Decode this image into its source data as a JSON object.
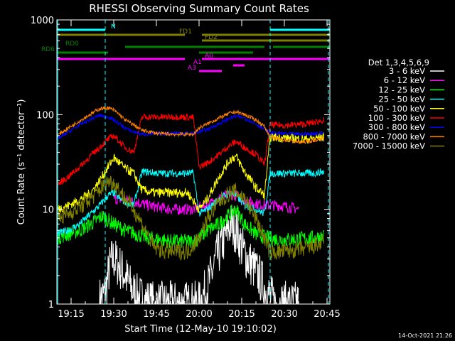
{
  "chart_data": {
    "type": "line",
    "title": "RHESSI Observing Summary Count Rates",
    "xlabel": "Start Time (12-May-10 19:10:02)",
    "ylabel": "Count Rate (s⁻¹ detector⁻¹)",
    "y_scale": "log",
    "ylim": [
      1,
      1000
    ],
    "xlim_minutes": [
      0,
      96
    ],
    "x_ticks": [
      {
        "label": "19:15",
        "minute": 5
      },
      {
        "label": "19:30",
        "minute": 20
      },
      {
        "label": "19:45",
        "minute": 35
      },
      {
        "label": "20:00",
        "minute": 50
      },
      {
        "label": "20:15",
        "minute": 65
      },
      {
        "label": "20:30",
        "minute": 80
      },
      {
        "label": "20:45",
        "minute": 95
      }
    ],
    "y_ticks": [
      {
        "label": "1",
        "value": 1
      },
      {
        "label": "10",
        "value": 10
      },
      {
        "label": "100",
        "value": 100
      },
      {
        "label": "1000",
        "value": 1000
      }
    ],
    "timestamp": "14-Oct-2021 21:26",
    "legend": {
      "placement": "right",
      "header": "Det 1,3,4,5,6,9"
    },
    "series": [
      {
        "name": "3 - 6 keV",
        "color": "#ffffff",
        "points": [
          [
            15,
            1.1
          ],
          [
            17,
            1.3
          ],
          [
            18,
            2
          ],
          [
            19,
            2.8
          ],
          [
            20,
            3
          ],
          [
            22,
            2.5
          ],
          [
            24,
            2
          ],
          [
            26,
            1.5
          ],
          [
            28,
            1.2
          ],
          [
            34,
            1
          ],
          [
            50,
            1
          ],
          [
            53,
            1.5
          ],
          [
            56,
            3
          ],
          [
            59,
            5
          ],
          [
            61,
            7
          ],
          [
            63,
            6
          ],
          [
            65,
            4
          ],
          [
            67,
            3
          ],
          [
            69,
            2.5
          ],
          [
            71,
            2
          ],
          [
            73,
            1.5
          ],
          [
            75,
            1.2
          ],
          [
            77,
            1
          ],
          [
            85,
            1
          ]
        ]
      },
      {
        "name": "6 - 12 keV",
        "color": "#ff00ff",
        "points": [
          [
            20,
            13
          ],
          [
            24,
            12.5
          ],
          [
            28,
            12
          ],
          [
            32,
            11
          ],
          [
            36,
            10.5
          ],
          [
            40,
            10
          ],
          [
            44,
            10
          ],
          [
            48,
            10
          ],
          [
            50,
            10.5
          ],
          [
            53,
            11
          ],
          [
            57,
            13
          ],
          [
            61,
            14.5
          ],
          [
            63,
            14
          ],
          [
            66,
            12.5
          ],
          [
            70,
            11.5
          ],
          [
            74,
            11
          ],
          [
            78,
            11
          ],
          [
            82,
            10.5
          ],
          [
            85,
            10
          ]
        ]
      },
      {
        "name": "12 - 25 keV",
        "color": "#00ff00",
        "points": [
          [
            0,
            5
          ],
          [
            4,
            5.5
          ],
          [
            8,
            6
          ],
          [
            12,
            7
          ],
          [
            16,
            8.5
          ],
          [
            20,
            7
          ],
          [
            24,
            6
          ],
          [
            28,
            5.5
          ],
          [
            32,
            5
          ],
          [
            36,
            4.8
          ],
          [
            40,
            4.6
          ],
          [
            44,
            4.6
          ],
          [
            48,
            4.6
          ],
          [
            50,
            5
          ],
          [
            53,
            6
          ],
          [
            57,
            7
          ],
          [
            61,
            9
          ],
          [
            63,
            10
          ],
          [
            66,
            7
          ],
          [
            70,
            5.5
          ],
          [
            74,
            5
          ],
          [
            78,
            4.8
          ],
          [
            82,
            4.8
          ],
          [
            86,
            4.9
          ],
          [
            90,
            5
          ],
          [
            94,
            5.2
          ]
        ]
      },
      {
        "name": "25 - 50 keV",
        "color": "#00ffff",
        "points": [
          [
            0,
            5.5
          ],
          [
            4,
            6
          ],
          [
            8,
            7
          ],
          [
            12,
            9
          ],
          [
            15,
            11
          ],
          [
            18,
            14
          ],
          [
            20,
            15
          ],
          [
            22,
            13
          ],
          [
            24,
            12
          ],
          [
            27,
            11
          ],
          [
            30,
            25
          ],
          [
            36,
            24
          ],
          [
            42,
            24
          ],
          [
            48,
            24
          ],
          [
            50,
            9
          ],
          [
            53,
            10
          ],
          [
            57,
            13
          ],
          [
            61,
            15
          ],
          [
            63,
            14
          ],
          [
            66,
            11
          ],
          [
            70,
            10
          ],
          [
            73,
            9
          ],
          [
            75,
            24
          ],
          [
            80,
            24
          ],
          [
            86,
            24
          ],
          [
            90,
            24
          ],
          [
            94,
            25
          ]
        ]
      },
      {
        "name": "50 - 100 keV",
        "color": "#ffff00",
        "points": [
          [
            0,
            10
          ],
          [
            4,
            11
          ],
          [
            8,
            12.5
          ],
          [
            12,
            15
          ],
          [
            15,
            20
          ],
          [
            18,
            28
          ],
          [
            20,
            35
          ],
          [
            22,
            31
          ],
          [
            24,
            27
          ],
          [
            27,
            24
          ],
          [
            30,
            16
          ],
          [
            34,
            15
          ],
          [
            38,
            15
          ],
          [
            42,
            15
          ],
          [
            46,
            15
          ],
          [
            50,
            10
          ],
          [
            53,
            13
          ],
          [
            57,
            22
          ],
          [
            61,
            34
          ],
          [
            63,
            36
          ],
          [
            66,
            25
          ],
          [
            70,
            17
          ],
          [
            73,
            14
          ],
          [
            75,
            58
          ],
          [
            80,
            57
          ],
          [
            86,
            55
          ],
          [
            90,
            56
          ],
          [
            94,
            58
          ]
        ]
      },
      {
        "name": "100 - 300 keV",
        "color": "#ff0000",
        "points": [
          [
            0,
            18
          ],
          [
            4,
            22
          ],
          [
            8,
            28
          ],
          [
            12,
            37
          ],
          [
            15,
            45
          ],
          [
            18,
            55
          ],
          [
            20,
            60
          ],
          [
            22,
            52
          ],
          [
            24,
            45
          ],
          [
            27,
            40
          ],
          [
            30,
            95
          ],
          [
            36,
            94
          ],
          [
            42,
            95
          ],
          [
            48,
            93
          ],
          [
            50,
            28
          ],
          [
            53,
            31
          ],
          [
            57,
            38
          ],
          [
            61,
            48
          ],
          [
            63,
            52
          ],
          [
            66,
            45
          ],
          [
            70,
            38
          ],
          [
            73,
            30
          ],
          [
            75,
            78
          ],
          [
            80,
            77
          ],
          [
            86,
            79
          ],
          [
            90,
            82
          ],
          [
            94,
            88
          ]
        ]
      },
      {
        "name": "300 - 800 keV",
        "color": "#0000ff",
        "points": [
          [
            0,
            55
          ],
          [
            4,
            65
          ],
          [
            8,
            78
          ],
          [
            12,
            90
          ],
          [
            15,
            98
          ],
          [
            18,
            95
          ],
          [
            20,
            88
          ],
          [
            22,
            80
          ],
          [
            24,
            72
          ],
          [
            27,
            66
          ],
          [
            30,
            62
          ],
          [
            36,
            63
          ],
          [
            42,
            64
          ],
          [
            48,
            63
          ],
          [
            50,
            66
          ],
          [
            53,
            70
          ],
          [
            57,
            80
          ],
          [
            61,
            92
          ],
          [
            63,
            96
          ],
          [
            66,
            92
          ],
          [
            70,
            80
          ],
          [
            73,
            70
          ],
          [
            75,
            64
          ],
          [
            80,
            63
          ],
          [
            86,
            62
          ],
          [
            90,
            63
          ],
          [
            94,
            64
          ]
        ]
      },
      {
        "name": "800 - 7000 keV",
        "color": "#ff8000",
        "points": [
          [
            0,
            60
          ],
          [
            4,
            72
          ],
          [
            8,
            86
          ],
          [
            12,
            102
          ],
          [
            15,
            115
          ],
          [
            18,
            118
          ],
          [
            20,
            112
          ],
          [
            22,
            100
          ],
          [
            24,
            88
          ],
          [
            27,
            78
          ],
          [
            30,
            68
          ],
          [
            36,
            63
          ],
          [
            42,
            62
          ],
          [
            48,
            62
          ],
          [
            50,
            72
          ],
          [
            53,
            80
          ],
          [
            57,
            92
          ],
          [
            61,
            104
          ],
          [
            63,
            107
          ],
          [
            66,
            100
          ],
          [
            70,
            88
          ],
          [
            73,
            75
          ],
          [
            75,
            58
          ],
          [
            80,
            54
          ],
          [
            86,
            51
          ],
          [
            90,
            53
          ],
          [
            94,
            57
          ]
        ]
      },
      {
        "name": "7000 - 15000 keV",
        "color": "#808000",
        "points": [
          [
            0,
            8
          ],
          [
            4,
            9
          ],
          [
            8,
            10.5
          ],
          [
            12,
            13
          ],
          [
            15,
            16
          ],
          [
            18,
            20
          ],
          [
            20,
            19
          ],
          [
            22,
            16
          ],
          [
            24,
            13
          ],
          [
            27,
            10
          ],
          [
            30,
            7
          ],
          [
            34,
            4
          ],
          [
            38,
            3.6
          ],
          [
            42,
            3.6
          ],
          [
            46,
            3.6
          ],
          [
            50,
            5
          ],
          [
            53,
            8
          ],
          [
            57,
            12
          ],
          [
            61,
            15
          ],
          [
            63,
            15.5
          ],
          [
            66,
            13
          ],
          [
            70,
            8
          ],
          [
            73,
            5
          ],
          [
            75,
            3.5
          ],
          [
            80,
            3.6
          ],
          [
            86,
            3.8
          ],
          [
            90,
            4
          ],
          [
            94,
            4.5
          ]
        ]
      }
    ],
    "attitude_bars": [
      {
        "label": "N",
        "color": "#00ffff",
        "segments": [
          [
            0,
            17
          ],
          [
            75,
            96
          ]
        ]
      },
      {
        "label": "FD1",
        "color": "#808000",
        "segments": [
          [
            0,
            45
          ],
          [
            51,
            96
          ]
        ]
      },
      {
        "label": "FD2",
        "color": "#808000",
        "segments": [
          [
            51,
            96
          ]
        ]
      },
      {
        "label": "RD0",
        "color": "#008000",
        "segments": [
          [
            24,
            73
          ],
          [
            76,
            96
          ]
        ]
      },
      {
        "label": "RD6",
        "color": "#008000",
        "segments": [
          [
            0,
            18
          ],
          [
            50,
            69
          ]
        ]
      },
      {
        "label": "A0",
        "color": "#ff00ff",
        "segments": [
          [
            0,
            45
          ],
          [
            51,
            96
          ]
        ]
      },
      {
        "label": "A1",
        "color": "#ff00ff",
        "segments": [
          [
            62,
            66
          ]
        ]
      },
      {
        "label": "A3",
        "color": "#ff00ff",
        "segments": [
          [
            50,
            58
          ]
        ]
      }
    ],
    "grid": false
  }
}
